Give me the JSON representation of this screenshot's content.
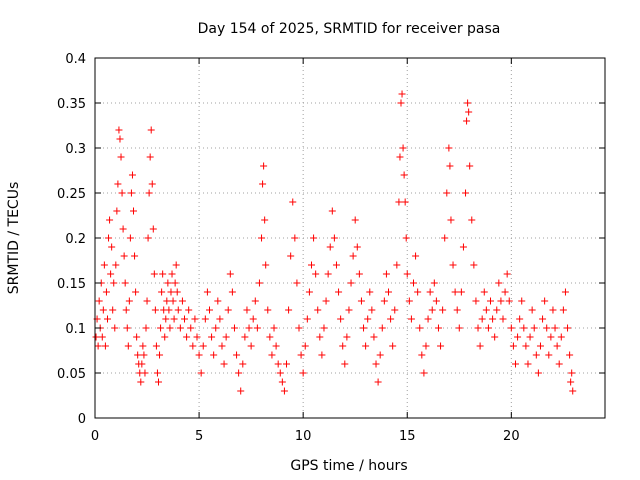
{
  "chart_data": {
    "type": "scatter",
    "title": "Day 154 of 2025, SRMTID for receiver pasa",
    "xlabel": "GPS time / hours",
    "ylabel": "SRMTID / TECUs",
    "xlim": [
      0,
      24.5
    ],
    "ylim": [
      0,
      0.4
    ],
    "xticks": [
      0,
      5,
      10,
      15,
      20
    ],
    "xtick_labels": [
      "0",
      "5",
      "10",
      "15",
      "20"
    ],
    "yticks": [
      0,
      0.05,
      0.1,
      0.15,
      0.2,
      0.25,
      0.3,
      0.35,
      0.4
    ],
    "ytick_labels": [
      "0",
      "0.05",
      "0.1",
      "0.15",
      "0.2",
      "0.25",
      "0.3",
      "0.35",
      "0.4"
    ],
    "grid": true,
    "marker": "+",
    "color": "#ff0000",
    "series": [
      {
        "name": "SRMTID",
        "points": [
          [
            0.05,
            0.09
          ],
          [
            0.1,
            0.11
          ],
          [
            0.15,
            0.08
          ],
          [
            0.2,
            0.13
          ],
          [
            0.25,
            0.1
          ],
          [
            0.3,
            0.15
          ],
          [
            0.35,
            0.09
          ],
          [
            0.4,
            0.12
          ],
          [
            0.45,
            0.17
          ],
          [
            0.5,
            0.08
          ],
          [
            0.55,
            0.14
          ],
          [
            0.6,
            0.11
          ],
          [
            0.65,
            0.2
          ],
          [
            0.7,
            0.22
          ],
          [
            0.75,
            0.16
          ],
          [
            0.8,
            0.19
          ],
          [
            0.85,
            0.12
          ],
          [
            0.9,
            0.15
          ],
          [
            0.95,
            0.1
          ],
          [
            1.0,
            0.17
          ],
          [
            1.05,
            0.23
          ],
          [
            1.1,
            0.26
          ],
          [
            1.15,
            0.32
          ],
          [
            1.2,
            0.31
          ],
          [
            1.25,
            0.29
          ],
          [
            1.3,
            0.25
          ],
          [
            1.35,
            0.21
          ],
          [
            1.4,
            0.18
          ],
          [
            1.45,
            0.15
          ],
          [
            1.5,
            0.12
          ],
          [
            1.55,
            0.1
          ],
          [
            1.6,
            0.08
          ],
          [
            1.65,
            0.13
          ],
          [
            1.7,
            0.2
          ],
          [
            1.75,
            0.25
          ],
          [
            1.8,
            0.27
          ],
          [
            1.85,
            0.23
          ],
          [
            1.9,
            0.18
          ],
          [
            1.95,
            0.14
          ],
          [
            2.0,
            0.09
          ],
          [
            2.05,
            0.07
          ],
          [
            2.1,
            0.06
          ],
          [
            2.15,
            0.05
          ],
          [
            2.2,
            0.04
          ],
          [
            2.25,
            0.06
          ],
          [
            2.3,
            0.08
          ],
          [
            2.35,
            0.07
          ],
          [
            2.4,
            0.05
          ],
          [
            2.45,
            0.1
          ],
          [
            2.5,
            0.13
          ],
          [
            2.55,
            0.2
          ],
          [
            2.6,
            0.25
          ],
          [
            2.65,
            0.29
          ],
          [
            2.7,
            0.32
          ],
          [
            2.75,
            0.26
          ],
          [
            2.8,
            0.21
          ],
          [
            2.85,
            0.16
          ],
          [
            2.9,
            0.12
          ],
          [
            2.95,
            0.08
          ],
          [
            3.0,
            0.05
          ],
          [
            3.05,
            0.04
          ],
          [
            3.1,
            0.07
          ],
          [
            3.15,
            0.1
          ],
          [
            3.2,
            0.14
          ],
          [
            3.25,
            0.16
          ],
          [
            3.3,
            0.12
          ],
          [
            3.35,
            0.09
          ],
          [
            3.4,
            0.11
          ],
          [
            3.45,
            0.13
          ],
          [
            3.5,
            0.15
          ],
          [
            3.55,
            0.12
          ],
          [
            3.6,
            0.1
          ],
          [
            3.65,
            0.14
          ],
          [
            3.7,
            0.16
          ],
          [
            3.75,
            0.13
          ],
          [
            3.8,
            0.11
          ],
          [
            3.85,
            0.15
          ],
          [
            3.9,
            0.17
          ],
          [
            3.95,
            0.14
          ],
          [
            4.0,
            0.12
          ],
          [
            4.1,
            0.1
          ],
          [
            4.2,
            0.13
          ],
          [
            4.3,
            0.11
          ],
          [
            4.4,
            0.09
          ],
          [
            4.5,
            0.12
          ],
          [
            4.6,
            0.1
          ],
          [
            4.7,
            0.08
          ],
          [
            4.8,
            0.11
          ],
          [
            4.9,
            0.09
          ],
          [
            5.0,
            0.07
          ],
          [
            5.1,
            0.05
          ],
          [
            5.2,
            0.08
          ],
          [
            5.3,
            0.11
          ],
          [
            5.4,
            0.14
          ],
          [
            5.5,
            0.12
          ],
          [
            5.6,
            0.09
          ],
          [
            5.7,
            0.07
          ],
          [
            5.8,
            0.1
          ],
          [
            5.9,
            0.13
          ],
          [
            6.0,
            0.11
          ],
          [
            6.1,
            0.08
          ],
          [
            6.2,
            0.06
          ],
          [
            6.3,
            0.09
          ],
          [
            6.4,
            0.12
          ],
          [
            6.5,
            0.16
          ],
          [
            6.6,
            0.14
          ],
          [
            6.7,
            0.1
          ],
          [
            6.8,
            0.07
          ],
          [
            6.9,
            0.05
          ],
          [
            7.0,
            0.03
          ],
          [
            7.1,
            0.06
          ],
          [
            7.2,
            0.09
          ],
          [
            7.3,
            0.12
          ],
          [
            7.4,
            0.1
          ],
          [
            7.5,
            0.08
          ],
          [
            7.6,
            0.11
          ],
          [
            7.7,
            0.13
          ],
          [
            7.8,
            0.1
          ],
          [
            7.9,
            0.15
          ],
          [
            8.0,
            0.2
          ],
          [
            8.05,
            0.26
          ],
          [
            8.1,
            0.28
          ],
          [
            8.15,
            0.22
          ],
          [
            8.2,
            0.17
          ],
          [
            8.3,
            0.12
          ],
          [
            8.4,
            0.09
          ],
          [
            8.5,
            0.07
          ],
          [
            8.6,
            0.1
          ],
          [
            8.7,
            0.08
          ],
          [
            8.8,
            0.06
          ],
          [
            8.9,
            0.05
          ],
          [
            9.0,
            0.04
          ],
          [
            9.1,
            0.03
          ],
          [
            9.2,
            0.06
          ],
          [
            9.3,
            0.12
          ],
          [
            9.4,
            0.18
          ],
          [
            9.5,
            0.24
          ],
          [
            9.6,
            0.2
          ],
          [
            9.7,
            0.15
          ],
          [
            9.8,
            0.1
          ],
          [
            9.9,
            0.07
          ],
          [
            10.0,
            0.05
          ],
          [
            10.1,
            0.08
          ],
          [
            10.2,
            0.11
          ],
          [
            10.3,
            0.14
          ],
          [
            10.4,
            0.17
          ],
          [
            10.5,
            0.2
          ],
          [
            10.6,
            0.16
          ],
          [
            10.7,
            0.12
          ],
          [
            10.8,
            0.09
          ],
          [
            10.9,
            0.07
          ],
          [
            11.0,
            0.1
          ],
          [
            11.1,
            0.13
          ],
          [
            11.2,
            0.16
          ],
          [
            11.3,
            0.19
          ],
          [
            11.4,
            0.23
          ],
          [
            11.5,
            0.2
          ],
          [
            11.6,
            0.17
          ],
          [
            11.7,
            0.14
          ],
          [
            11.8,
            0.11
          ],
          [
            11.9,
            0.08
          ],
          [
            12.0,
            0.06
          ],
          [
            12.1,
            0.09
          ],
          [
            12.2,
            0.12
          ],
          [
            12.3,
            0.15
          ],
          [
            12.4,
            0.18
          ],
          [
            12.5,
            0.22
          ],
          [
            12.6,
            0.19
          ],
          [
            12.7,
            0.16
          ],
          [
            12.8,
            0.13
          ],
          [
            12.9,
            0.1
          ],
          [
            13.0,
            0.08
          ],
          [
            13.1,
            0.11
          ],
          [
            13.2,
            0.14
          ],
          [
            13.3,
            0.12
          ],
          [
            13.4,
            0.09
          ],
          [
            13.5,
            0.06
          ],
          [
            13.6,
            0.04
          ],
          [
            13.7,
            0.07
          ],
          [
            13.8,
            0.1
          ],
          [
            13.9,
            0.13
          ],
          [
            14.0,
            0.16
          ],
          [
            14.1,
            0.14
          ],
          [
            14.2,
            0.11
          ],
          [
            14.3,
            0.08
          ],
          [
            14.4,
            0.12
          ],
          [
            14.5,
            0.17
          ],
          [
            14.6,
            0.24
          ],
          [
            14.65,
            0.29
          ],
          [
            14.7,
            0.35
          ],
          [
            14.75,
            0.36
          ],
          [
            14.8,
            0.3
          ],
          [
            14.85,
            0.27
          ],
          [
            14.9,
            0.24
          ],
          [
            14.95,
            0.2
          ],
          [
            15.0,
            0.16
          ],
          [
            15.1,
            0.13
          ],
          [
            15.2,
            0.11
          ],
          [
            15.3,
            0.15
          ],
          [
            15.4,
            0.18
          ],
          [
            15.5,
            0.14
          ],
          [
            15.6,
            0.1
          ],
          [
            15.7,
            0.07
          ],
          [
            15.8,
            0.05
          ],
          [
            15.9,
            0.08
          ],
          [
            16.0,
            0.11
          ],
          [
            16.1,
            0.14
          ],
          [
            16.2,
            0.12
          ],
          [
            16.3,
            0.15
          ],
          [
            16.4,
            0.13
          ],
          [
            16.5,
            0.1
          ],
          [
            16.6,
            0.08
          ],
          [
            16.7,
            0.12
          ],
          [
            16.8,
            0.2
          ],
          [
            16.9,
            0.25
          ],
          [
            17.0,
            0.3
          ],
          [
            17.05,
            0.28
          ],
          [
            17.1,
            0.22
          ],
          [
            17.2,
            0.17
          ],
          [
            17.3,
            0.14
          ],
          [
            17.4,
            0.12
          ],
          [
            17.5,
            0.1
          ],
          [
            17.6,
            0.14
          ],
          [
            17.7,
            0.19
          ],
          [
            17.8,
            0.25
          ],
          [
            17.85,
            0.33
          ],
          [
            17.9,
            0.35
          ],
          [
            17.95,
            0.34
          ],
          [
            18.0,
            0.28
          ],
          [
            18.1,
            0.22
          ],
          [
            18.2,
            0.17
          ],
          [
            18.3,
            0.13
          ],
          [
            18.4,
            0.1
          ],
          [
            18.5,
            0.08
          ],
          [
            18.6,
            0.11
          ],
          [
            18.7,
            0.14
          ],
          [
            18.8,
            0.12
          ],
          [
            18.9,
            0.1
          ],
          [
            19.0,
            0.13
          ],
          [
            19.1,
            0.11
          ],
          [
            19.2,
            0.09
          ],
          [
            19.3,
            0.12
          ],
          [
            19.4,
            0.15
          ],
          [
            19.5,
            0.13
          ],
          [
            19.6,
            0.11
          ],
          [
            19.7,
            0.14
          ],
          [
            19.8,
            0.16
          ],
          [
            19.9,
            0.13
          ],
          [
            20.0,
            0.1
          ],
          [
            20.1,
            0.08
          ],
          [
            20.2,
            0.06
          ],
          [
            20.3,
            0.09
          ],
          [
            20.4,
            0.11
          ],
          [
            20.5,
            0.13
          ],
          [
            20.6,
            0.1
          ],
          [
            20.7,
            0.08
          ],
          [
            20.8,
            0.06
          ],
          [
            20.9,
            0.09
          ],
          [
            21.0,
            0.12
          ],
          [
            21.1,
            0.1
          ],
          [
            21.2,
            0.07
          ],
          [
            21.3,
            0.05
          ],
          [
            21.4,
            0.08
          ],
          [
            21.5,
            0.11
          ],
          [
            21.6,
            0.13
          ],
          [
            21.7,
            0.1
          ],
          [
            21.8,
            0.07
          ],
          [
            21.9,
            0.09
          ],
          [
            22.0,
            0.12
          ],
          [
            22.1,
            0.1
          ],
          [
            22.2,
            0.08
          ],
          [
            22.3,
            0.06
          ],
          [
            22.4,
            0.09
          ],
          [
            22.5,
            0.12
          ],
          [
            22.6,
            0.14
          ],
          [
            22.7,
            0.1
          ],
          [
            22.8,
            0.07
          ],
          [
            22.85,
            0.04
          ],
          [
            22.9,
            0.05
          ],
          [
            22.95,
            0.03
          ]
        ]
      }
    ]
  }
}
